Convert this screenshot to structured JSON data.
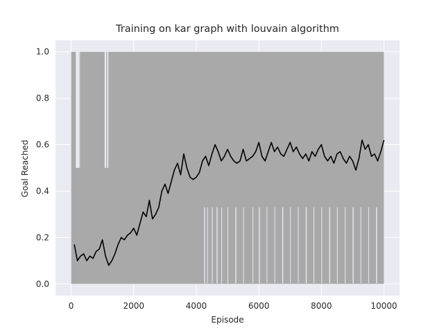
{
  "chart_data": {
    "type": "line",
    "title": "Training on kar graph with louvain algorithm",
    "xlabel": "Episode",
    "ylabel": "Goal Reached",
    "xlim": [
      -500,
      10500
    ],
    "ylim": [
      -0.05,
      1.05
    ],
    "xticks": [
      0,
      2000,
      4000,
      6000,
      8000,
      10000
    ],
    "yticks": [
      0.0,
      0.2,
      0.4,
      0.6,
      0.8,
      1.0
    ],
    "xtick_labels": [
      "0",
      "2000",
      "4000",
      "6000",
      "8000",
      "10000"
    ],
    "ytick_labels": [
      "0.0",
      "0.2",
      "0.4",
      "0.6",
      "0.8",
      "1.0"
    ],
    "grid": true,
    "background": "#eaeaf2",
    "series": [
      {
        "style": "raw",
        "color": "#a9a9a9",
        "description_values": "per-episode goal reached, oscillating between 0.0 and 1.0 (lower envelope ~0.33 after episode 4000, upper envelope 1.0)",
        "x": [
          0,
          10000
        ],
        "band_low": 0.0,
        "band_high": 1.0
      },
      {
        "style": "moving_average",
        "color": "#000000",
        "x": [
          100,
          200,
          300,
          400,
          500,
          600,
          700,
          800,
          900,
          1000,
          1100,
          1200,
          1300,
          1400,
          1500,
          1600,
          1700,
          1800,
          1900,
          2000,
          2100,
          2200,
          2300,
          2400,
          2500,
          2600,
          2700,
          2800,
          2900,
          3000,
          3100,
          3200,
          3300,
          3400,
          3500,
          3600,
          3700,
          3800,
          3900,
          4000,
          4100,
          4200,
          4300,
          4400,
          4500,
          4600,
          4700,
          4800,
          4900,
          5000,
          5100,
          5200,
          5300,
          5400,
          5500,
          5600,
          5700,
          5800,
          5900,
          6000,
          6100,
          6200,
          6300,
          6400,
          6500,
          6600,
          6700,
          6800,
          6900,
          7000,
          7100,
          7200,
          7300,
          7400,
          7500,
          7600,
          7700,
          7800,
          7900,
          8000,
          8100,
          8200,
          8300,
          8400,
          8500,
          8600,
          8700,
          8800,
          8900,
          9000,
          9100,
          9200,
          9300,
          9400,
          9500,
          9600,
          9700,
          9800,
          9900,
          10000
        ],
        "y": [
          0.17,
          0.1,
          0.12,
          0.13,
          0.1,
          0.12,
          0.11,
          0.14,
          0.15,
          0.19,
          0.12,
          0.08,
          0.1,
          0.13,
          0.17,
          0.2,
          0.19,
          0.21,
          0.22,
          0.24,
          0.21,
          0.26,
          0.31,
          0.29,
          0.36,
          0.28,
          0.3,
          0.33,
          0.4,
          0.43,
          0.39,
          0.44,
          0.49,
          0.52,
          0.47,
          0.56,
          0.5,
          0.46,
          0.45,
          0.46,
          0.48,
          0.53,
          0.55,
          0.51,
          0.56,
          0.6,
          0.57,
          0.53,
          0.55,
          0.58,
          0.55,
          0.53,
          0.52,
          0.53,
          0.58,
          0.53,
          0.54,
          0.55,
          0.57,
          0.61,
          0.55,
          0.53,
          0.57,
          0.61,
          0.57,
          0.59,
          0.56,
          0.55,
          0.58,
          0.61,
          0.57,
          0.59,
          0.56,
          0.54,
          0.56,
          0.53,
          0.57,
          0.55,
          0.58,
          0.6,
          0.55,
          0.53,
          0.55,
          0.52,
          0.56,
          0.57,
          0.54,
          0.52,
          0.55,
          0.53,
          0.49,
          0.54,
          0.62,
          0.58,
          0.6,
          0.55,
          0.56,
          0.53,
          0.57,
          0.62
        ]
      }
    ]
  }
}
